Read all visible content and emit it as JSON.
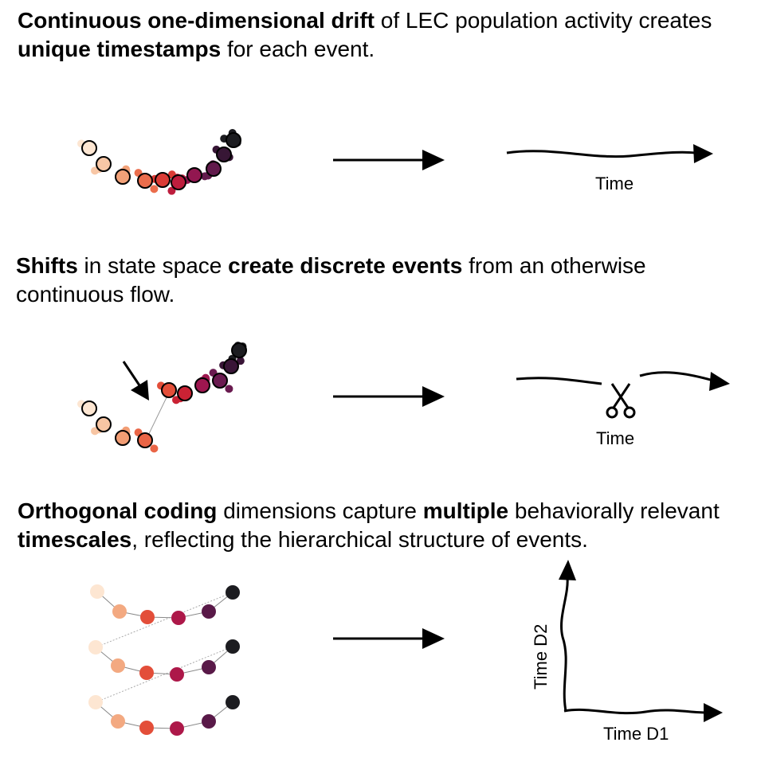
{
  "panels": [
    {
      "caption": [
        {
          "text": "Continuous one-dimensional drift",
          "bold": true
        },
        {
          "text": " of LEC population activity creates ",
          "bold": false
        },
        {
          "text": "unique timestamps",
          "bold": true
        },
        {
          "text": " for each event.",
          "bold": false
        }
      ],
      "time_label": "Time"
    },
    {
      "caption": [
        {
          "text": "Shifts",
          "bold": true
        },
        {
          "text": " in state space ",
          "bold": false
        },
        {
          "text": "create discrete events",
          "bold": true
        },
        {
          "text": " from an otherwise continuous flow.",
          "bold": false
        }
      ],
      "time_label": "Time",
      "cut_icon": "scissors-icon"
    },
    {
      "caption": [
        {
          "text": "Orthogonal coding",
          "bold": true
        },
        {
          "text": " dimensions capture ",
          "bold": false
        },
        {
          "text": "multiple",
          "bold": true
        },
        {
          "text": " behaviorally relevant ",
          "bold": false
        },
        {
          "text": "timescales",
          "bold": true
        },
        {
          "text": ", reflecting the hierarchical structure of events.",
          "bold": false
        }
      ],
      "x_label": "Time D1",
      "y_label": "Time D2"
    }
  ],
  "palette": [
    "#fde6d2",
    "#f7c3a0",
    "#f1976d",
    "#e8583c",
    "#d1242f",
    "#a4154f",
    "#6e1b52",
    "#3a1538",
    "#1c1c20"
  ]
}
